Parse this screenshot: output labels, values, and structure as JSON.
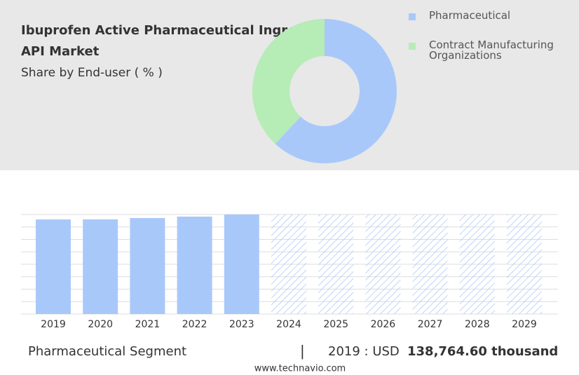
{
  "chart_data": [
    {
      "type": "pie",
      "title": "Ibuprofen Active Pharmaceutical Ingredient API Market",
      "subtitle": "Share by End-user ( % )",
      "categories": [
        "Pharmaceutical",
        "Contract Manufacturing Organizations"
      ],
      "values": [
        62,
        38
      ],
      "colors": [
        "#a9c8fa",
        "#b6ecb6"
      ],
      "donut": true
    },
    {
      "type": "bar",
      "categories": [
        "2019",
        "2020",
        "2021",
        "2022",
        "2023",
        "2024",
        "2025",
        "2026",
        "2027",
        "2028",
        "2029"
      ],
      "values": [
        138764.6,
        138800,
        140800,
        142900,
        146000,
        null,
        null,
        null,
        null,
        null,
        null
      ],
      "color": "#a9c8fa",
      "ylim": [
        0,
        146000
      ]
    }
  ],
  "footer": {
    "segment": "Pharmaceutical Segment",
    "year_label": "2019 : USD",
    "value_text": "138,764.60 thousand",
    "website": "www.technavio.com"
  }
}
